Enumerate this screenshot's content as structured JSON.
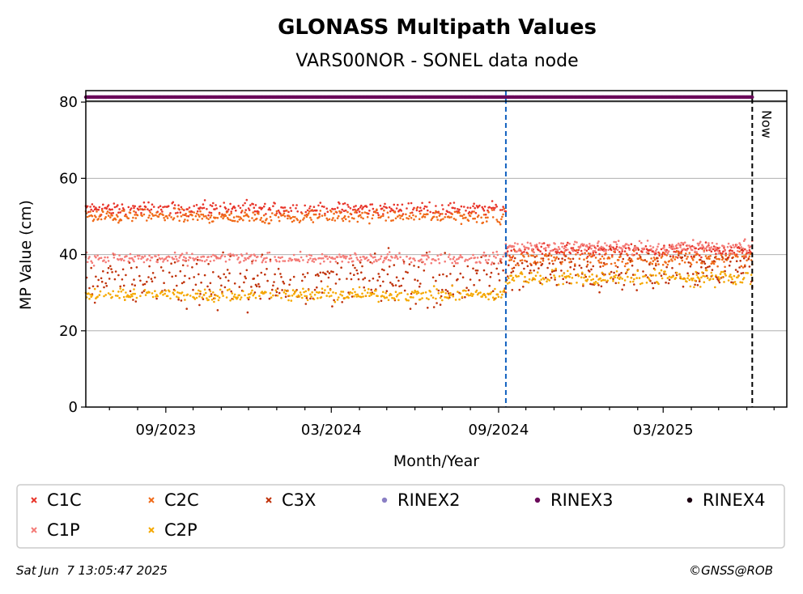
{
  "chart_data": {
    "type": "scatter",
    "title": "GLONASS Multipath Values",
    "subtitle": "VARS00NOR - SONEL data node",
    "xlabel": "Month/Year",
    "ylabel": "MP Value (cm)",
    "xlim": [
      "2023-06-05",
      "2025-07-15"
    ],
    "ylim": [
      0,
      83
    ],
    "yticks": [
      0,
      20,
      40,
      60,
      80
    ],
    "xticks": [
      {
        "date": "2023-09-01",
        "label": "09/2023"
      },
      {
        "date": "2024-03-01",
        "label": "03/2024"
      },
      {
        "date": "2024-09-01",
        "label": "09/2024"
      },
      {
        "date": "2025-03-01",
        "label": "03/2025"
      }
    ],
    "grid": "y",
    "legend_placement": "below",
    "changepoint_date": "2024-09-09",
    "now_date": "2025-06-07",
    "now_label": "Now",
    "series": [
      {
        "name": "C1C",
        "color": "#e8352a",
        "marker": "x",
        "segments": [
          {
            "from": "2023-06-05",
            "to": "2024-09-09",
            "mean": 52,
            "spread": 1.2
          },
          {
            "from": "2024-09-09",
            "to": "2025-06-07",
            "mean": 41,
            "spread": 1.2
          }
        ]
      },
      {
        "name": "C2C",
        "color": "#f06a18",
        "marker": "x",
        "segments": [
          {
            "from": "2023-06-05",
            "to": "2024-09-09",
            "mean": 50,
            "spread": 1.2
          },
          {
            "from": "2024-09-09",
            "to": "2025-06-07",
            "mean": 39,
            "spread": 1.5
          }
        ]
      },
      {
        "name": "C3X",
        "color": "#c0320a",
        "marker": "x",
        "segments": [
          {
            "from": "2023-06-05",
            "to": "2024-09-09",
            "mean": 33,
            "spread": 4.5
          },
          {
            "from": "2024-09-09",
            "to": "2025-06-07",
            "mean": 36,
            "spread": 3.5
          }
        ]
      },
      {
        "name": "RINEX2",
        "color": "#8a7fc4",
        "marker": "o",
        "segments": []
      },
      {
        "name": "RINEX3",
        "color": "#6a0a5a",
        "marker": "o",
        "segments": [
          {
            "from": "2023-06-05",
            "to": "2025-06-07",
            "mean": 81.3,
            "spread": 0
          }
        ]
      },
      {
        "name": "RINEX4",
        "color": "#1a0010",
        "marker": "o",
        "segments": []
      },
      {
        "name": "C1P",
        "color": "#f47c78",
        "marker": "x",
        "segments": [
          {
            "from": "2023-06-05",
            "to": "2024-09-09",
            "mean": 39,
            "spread": 1.0
          },
          {
            "from": "2024-09-09",
            "to": "2025-06-07",
            "mean": 42,
            "spread": 1.2
          }
        ]
      },
      {
        "name": "C2P",
        "color": "#f5a800",
        "marker": "x",
        "segments": [
          {
            "from": "2023-06-05",
            "to": "2024-09-09",
            "mean": 29.5,
            "spread": 1.2
          },
          {
            "from": "2024-09-09",
            "to": "2025-06-07",
            "mean": 34,
            "spread": 1.5
          }
        ]
      }
    ]
  },
  "footer": {
    "timestamp": "Sat Jun  7 13:05:47 2025",
    "credit": "©GNSS@ROB"
  }
}
